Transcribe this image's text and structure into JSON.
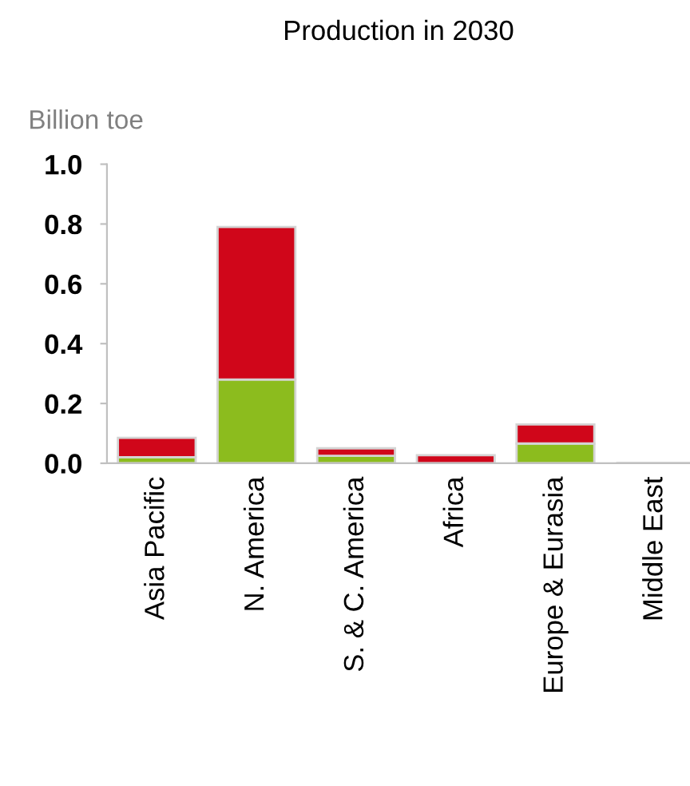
{
  "chart_data": {
    "type": "bar",
    "title": "Production in 2030",
    "ylabel": "Billion toe",
    "categories": [
      "Asia Pacific",
      "N. America",
      "S. & C. America",
      "Africa",
      "Europe & Eurasia",
      "Middle East"
    ],
    "stacked": true,
    "series": [
      {
        "color": "#8cbc1e",
        "values": [
          0.02,
          0.28,
          0.025,
          0,
          0.066,
          0
        ]
      },
      {
        "color": "#d0061a",
        "values": [
          0.065,
          0.51,
          0.025,
          0.027,
          0.064,
          0
        ]
      }
    ],
    "ylim": [
      0,
      1.0
    ],
    "yticks": [
      {
        "value": 0,
        "label": "0.0"
      },
      {
        "value": 0.2,
        "label": "0.2"
      },
      {
        "value": 0.4,
        "label": "0.4"
      },
      {
        "value": 0.6,
        "label": "0.6"
      },
      {
        "value": 0.8,
        "label": "0.8"
      },
      {
        "value": 1.0,
        "label": "1.0"
      }
    ],
    "grid": false
  }
}
